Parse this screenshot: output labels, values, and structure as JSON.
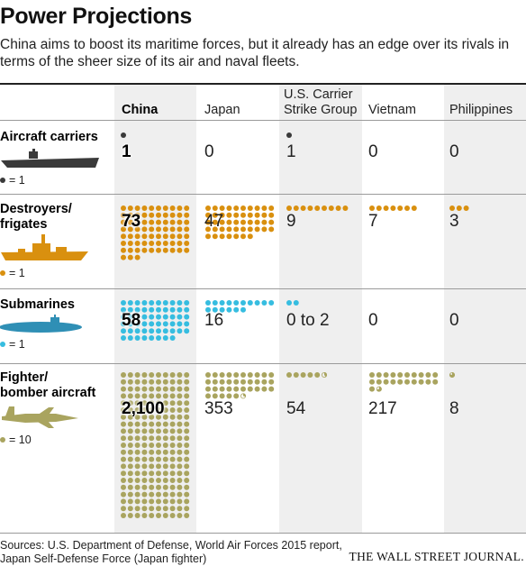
{
  "title": "Power Projections",
  "subtitle": "China aims to boost its maritime forces, but it already has an edge over its rivals in terms of the sheer size of its air and naval fleets.",
  "colors": {
    "aircraft_carriers": "#3a3a3a",
    "destroyers": "#d9900f",
    "submarines": "#36bde0",
    "fighters": "#a9a45f",
    "column_highlight": "#efefef"
  },
  "chart_data": {
    "type": "table",
    "columns": [
      "China",
      "Japan",
      "U.S. Carrier Strike Group",
      "Vietnam",
      "Philippines"
    ],
    "rows": [
      {
        "category": "Aircraft carriers",
        "legend": "= 1",
        "unit": 1,
        "icon": "aircraft-carrier-icon",
        "labels": [
          "1",
          "0",
          "1",
          "0",
          "0"
        ],
        "values": [
          1,
          0,
          1,
          0,
          0
        ]
      },
      {
        "category": "Destroyers/ frigates",
        "legend": "= 1",
        "unit": 1,
        "icon": "destroyer-icon",
        "labels": [
          "73",
          "47",
          "9",
          "7",
          "3"
        ],
        "values": [
          73,
          47,
          9,
          7,
          3
        ]
      },
      {
        "category": "Submarines",
        "legend": "= 1",
        "unit": 1,
        "icon": "submarine-icon",
        "labels": [
          "58",
          "16",
          "0 to 2",
          "0",
          "0"
        ],
        "values": [
          58,
          16,
          2,
          0,
          0
        ]
      },
      {
        "category": "Fighter/ bomber aircraft",
        "legend": "= 10",
        "unit": 10,
        "icon": "fighter-jet-icon",
        "labels": [
          "2,100",
          "353",
          "54",
          "217",
          "8"
        ],
        "values": [
          2100,
          353,
          54,
          217,
          8
        ]
      }
    ]
  },
  "source": {
    "line1": "Sources: U.S. Department of Defense, World Air Forces 2015 report,",
    "line2": "Japan Self-Defense Force (Japan fighter)"
  },
  "brand": "THE WALL STREET JOURNAL."
}
